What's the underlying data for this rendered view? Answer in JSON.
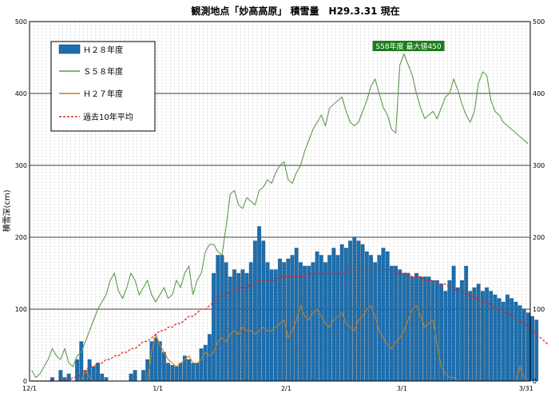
{
  "chart_data": {
    "type": "bar",
    "title": "観測地点「妙高高原」 積雪量　H29.3.31 現在",
    "ylabel": "積雪深(cm)",
    "ylim": [
      0,
      500
    ],
    "yticks": [
      0,
      100,
      200,
      300,
      400,
      500
    ],
    "x_ticks": [
      {
        "label": "12/1",
        "day": 0
      },
      {
        "label": "1/1",
        "day": 31
      },
      {
        "label": "2/1",
        "day": 62
      },
      {
        "label": "3/1",
        "day": 90
      },
      {
        "label": "3/31",
        "day": 120
      }
    ],
    "x_start": "12/1",
    "x_end": "3/31",
    "grid": true,
    "legend_position": "top-left",
    "annotation": {
      "text": "S58年度 最大値450",
      "day": 91,
      "value": 450
    },
    "series": [
      {
        "name": "Ｈ２８年度",
        "type": "bar",
        "color": "#1b6fb0",
        "values": [
          0,
          0,
          0,
          0,
          0,
          5,
          0,
          15,
          5,
          10,
          0,
          30,
          55,
          15,
          30,
          20,
          25,
          10,
          5,
          0,
          0,
          0,
          0,
          0,
          10,
          15,
          0,
          15,
          30,
          55,
          60,
          55,
          40,
          25,
          22,
          20,
          25,
          35,
          30,
          25,
          25,
          45,
          50,
          65,
          150,
          175,
          175,
          165,
          145,
          155,
          150,
          155,
          150,
          165,
          195,
          215,
          195,
          165,
          155,
          155,
          170,
          165,
          170,
          175,
          185,
          165,
          160,
          160,
          165,
          180,
          175,
          165,
          175,
          185,
          175,
          190,
          185,
          195,
          200,
          195,
          190,
          180,
          175,
          165,
          175,
          185,
          180,
          160,
          160,
          155,
          150,
          150,
          145,
          150,
          145,
          145,
          145,
          140,
          140,
          135,
          125,
          140,
          160,
          130,
          140,
          160,
          125,
          130,
          135,
          125,
          130,
          125,
          120,
          115,
          110,
          120,
          115,
          110,
          105,
          100,
          95,
          90,
          85
        ]
      },
      {
        "name": "Ｓ５８年度",
        "type": "line",
        "color": "#5f9a4f",
        "values": [
          15,
          5,
          10,
          20,
          30,
          45,
          35,
          30,
          45,
          25,
          20,
          35,
          40,
          55,
          70,
          85,
          100,
          110,
          120,
          140,
          150,
          125,
          115,
          130,
          150,
          140,
          120,
          130,
          140,
          120,
          110,
          120,
          130,
          115,
          120,
          140,
          130,
          150,
          160,
          120,
          140,
          150,
          180,
          190,
          190,
          180,
          175,
          215,
          260,
          265,
          245,
          240,
          255,
          250,
          245,
          265,
          270,
          280,
          275,
          290,
          300,
          305,
          280,
          275,
          290,
          300,
          320,
          335,
          350,
          360,
          370,
          355,
          380,
          385,
          390,
          395,
          375,
          360,
          355,
          360,
          375,
          390,
          410,
          420,
          400,
          380,
          370,
          350,
          345,
          440,
          455,
          440,
          425,
          400,
          380,
          365,
          370,
          375,
          365,
          380,
          395,
          400,
          420,
          405,
          385,
          370,
          360,
          375,
          415,
          430,
          425,
          390,
          375,
          370,
          360,
          355,
          350,
          345,
          340,
          335,
          330
        ]
      },
      {
        "name": "Ｈ２７年度",
        "type": "line",
        "color": "#d07a1a",
        "values": [
          0,
          0,
          0,
          0,
          0,
          0,
          0,
          0,
          0,
          0,
          0,
          0,
          0,
          15,
          5,
          0,
          0,
          0,
          0,
          0,
          0,
          0,
          0,
          0,
          0,
          0,
          0,
          0,
          0,
          40,
          65,
          50,
          40,
          30,
          25,
          20,
          25,
          30,
          35,
          25,
          25,
          30,
          40,
          35,
          40,
          55,
          60,
          55,
          65,
          70,
          65,
          75,
          70,
          70,
          65,
          70,
          75,
          70,
          70,
          75,
          80,
          85,
          60,
          70,
          85,
          105,
          90,
          85,
          95,
          100,
          90,
          80,
          75,
          85,
          90,
          95,
          80,
          75,
          70,
          85,
          90,
          100,
          105,
          90,
          70,
          60,
          50,
          45,
          55,
          60,
          70,
          85,
          100,
          105,
          90,
          75,
          80,
          85,
          50,
          20,
          10,
          5,
          5,
          0,
          0,
          0,
          0,
          0,
          0,
          0,
          0,
          0,
          0,
          0,
          0,
          0,
          0,
          0,
          20,
          5,
          0
        ]
      },
      {
        "name": "過去10年平均",
        "type": "dashed-line",
        "color": "#e02020",
        "values": [
          0,
          0,
          0,
          0,
          0,
          0,
          0,
          0,
          0,
          0,
          5,
          5,
          10,
          15,
          20,
          20,
          25,
          25,
          30,
          30,
          35,
          35,
          40,
          40,
          45,
          45,
          50,
          55,
          55,
          60,
          65,
          70,
          70,
          75,
          75,
          80,
          80,
          85,
          90,
          90,
          95,
          100,
          100,
          105,
          110,
          115,
          120,
          120,
          125,
          125,
          130,
          130,
          130,
          135,
          135,
          140,
          140,
          140,
          140,
          140,
          145,
          145,
          145,
          145,
          145,
          145,
          145,
          150,
          150,
          150,
          150,
          150,
          150,
          150,
          150,
          150,
          150,
          155,
          155,
          155,
          155,
          155,
          155,
          155,
          155,
          155,
          155,
          155,
          150,
          150,
          150,
          150,
          145,
          145,
          145,
          140,
          140,
          140,
          135,
          135,
          135,
          130,
          130,
          125,
          125,
          120,
          120,
          115,
          115,
          110,
          110,
          105,
          100,
          100,
          95,
          95,
          90,
          85,
          85,
          80,
          75,
          70,
          65,
          60,
          55,
          50
        ]
      }
    ]
  }
}
